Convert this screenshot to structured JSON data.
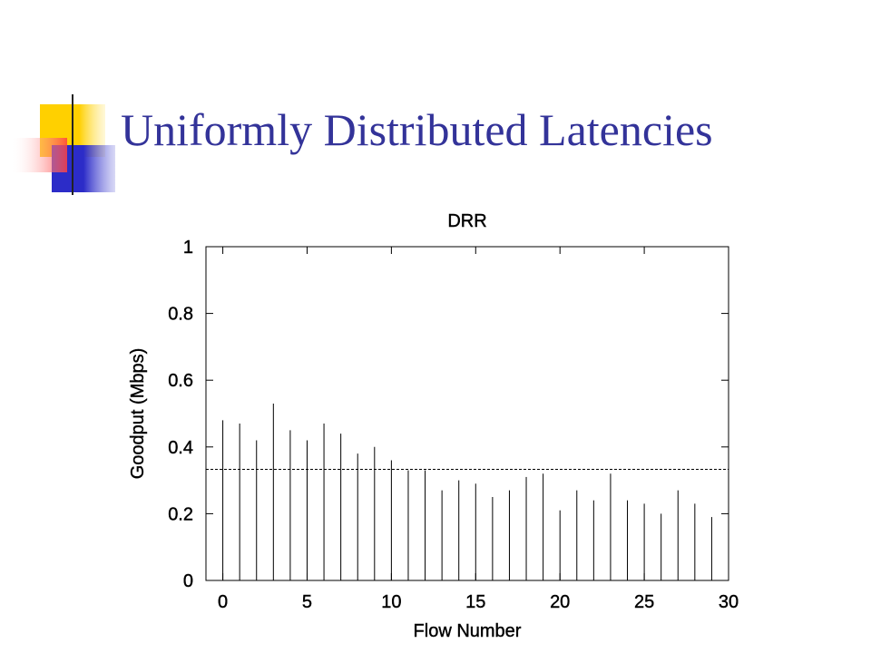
{
  "slide_title": "Uniformly Distributed Latencies",
  "chart_data": {
    "type": "impulse",
    "title": "DRR",
    "x_label": "Flow Number",
    "y_label": "Goodput (Mbps)",
    "x": [
      0,
      1,
      2,
      3,
      4,
      5,
      6,
      7,
      8,
      9,
      10,
      11,
      12,
      13,
      14,
      15,
      16,
      17,
      18,
      19,
      20,
      21,
      22,
      23,
      24,
      25,
      26,
      27,
      28,
      29
    ],
    "values": [
      0.48,
      0.47,
      0.42,
      0.53,
      0.45,
      0.42,
      0.47,
      0.44,
      0.38,
      0.4,
      0.36,
      0.33,
      0.33,
      0.27,
      0.3,
      0.29,
      0.25,
      0.27,
      0.31,
      0.32,
      0.21,
      0.27,
      0.24,
      0.32,
      0.24,
      0.23,
      0.2,
      0.27,
      0.23,
      0.19
    ],
    "color": "#000000",
    "reference_line": 0.333,
    "xlim": [
      -1,
      30
    ],
    "xticks": [
      0,
      5,
      10,
      15,
      20,
      25,
      30
    ],
    "ylim": [
      0,
      1
    ],
    "yticks": [
      0,
      0.2,
      0.4,
      0.6,
      0.8,
      1
    ]
  }
}
